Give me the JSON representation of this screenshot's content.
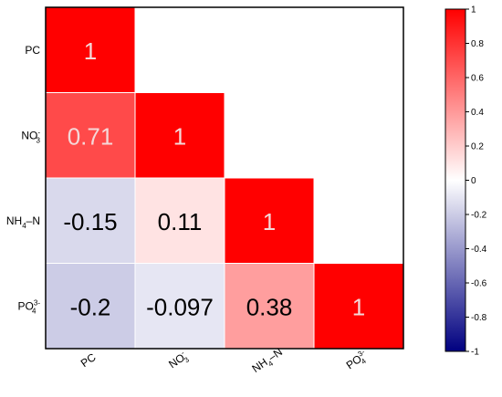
{
  "chart_data": {
    "type": "heatmap",
    "title": "",
    "subtitle": "",
    "xlabel": "",
    "ylabel": "",
    "variables": [
      {
        "base": "PC",
        "sub": "",
        "sup": ""
      },
      {
        "base": "NO",
        "sub": "3",
        "sup": "-"
      },
      {
        "base": "NH",
        "sub": "4",
        "sup": "",
        "suffix": "–N"
      },
      {
        "base": "PO",
        "sub": "4",
        "sup": "3-"
      }
    ],
    "matrix": [
      [
        1
      ],
      [
        0.71,
        1
      ],
      [
        -0.15,
        0.11,
        1
      ],
      [
        -0.2,
        -0.097,
        0.38,
        1
      ]
    ],
    "cell_labels": [
      [
        "1"
      ],
      [
        "0.71",
        "1"
      ],
      [
        "-0.15",
        "0.11",
        "1"
      ],
      [
        "-0.2",
        "-0.097",
        "0.38",
        "1"
      ]
    ],
    "shape": "lower-triangular",
    "color_range": [
      -1,
      1
    ],
    "colors": {
      "low": "#000080",
      "mid": "#ffffff",
      "high": "#ff0000"
    },
    "colorbar": {
      "position": "right",
      "ticks": [
        1,
        0.8,
        0.6,
        0.4,
        0.2,
        0,
        -0.2,
        -0.4,
        -0.6,
        -0.8,
        -1
      ],
      "tick_labels": [
        "1",
        "0.8",
        "0.6",
        "0.4",
        "0.2",
        "0",
        "-0.2",
        "-0.4",
        "-0.6",
        "-0.8",
        "-1"
      ]
    }
  }
}
